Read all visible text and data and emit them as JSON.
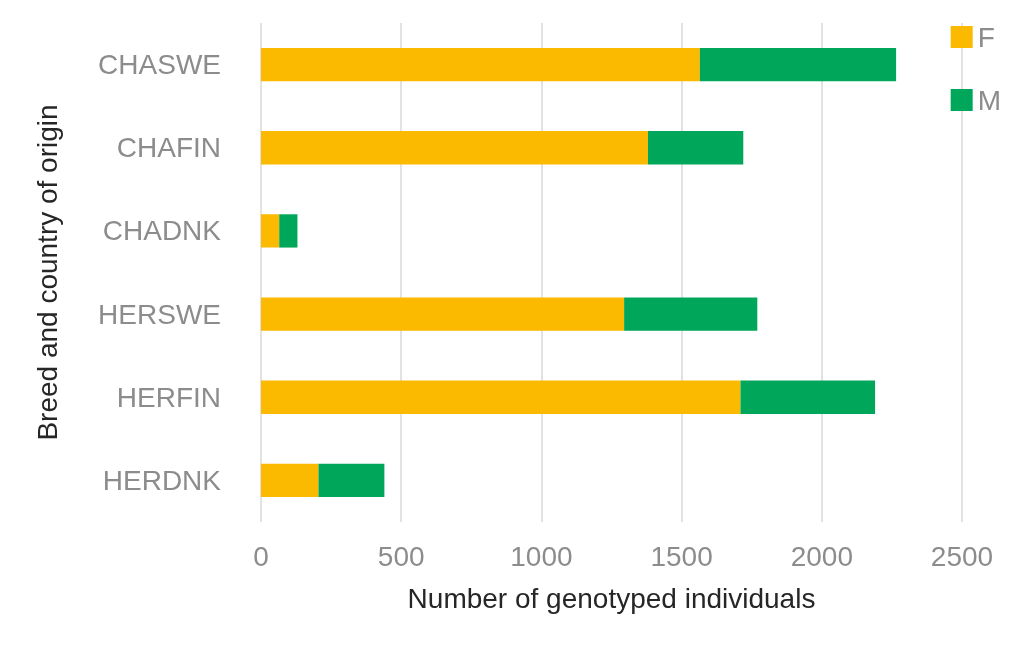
{
  "chart_data": {
    "type": "bar",
    "orientation": "horizontal",
    "stacked": true,
    "xlabel": "Number of genotyped individuals",
    "ylabel": "Breed and country of origin",
    "categories": [
      "CHASWE",
      "CHAFIN",
      "CHADNK",
      "HERSWE",
      "HERFIN",
      "HERDNK"
    ],
    "series": [
      {
        "name": "F",
        "color": "#fbb900",
        "values": [
          1565,
          1380,
          65,
          1295,
          1710,
          205
        ]
      },
      {
        "name": "M",
        "color": "#00a65a",
        "values": [
          700,
          340,
          65,
          475,
          480,
          235
        ]
      }
    ],
    "xlim": [
      0,
      2500
    ],
    "xticks": [
      0,
      500,
      1000,
      1500,
      2000,
      2500
    ],
    "grid": "x",
    "legend": "top right"
  }
}
